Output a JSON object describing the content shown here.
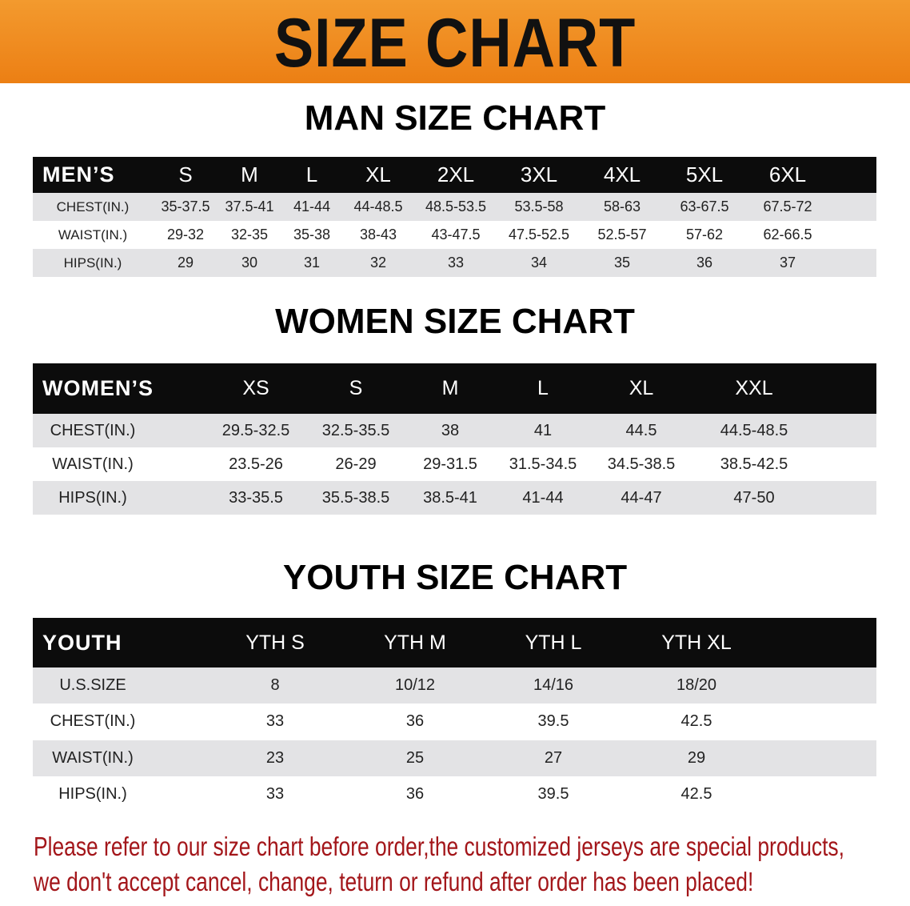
{
  "banner": {
    "title": "SIZE CHART",
    "color": "#ec7f14"
  },
  "men": {
    "title": "MAN SIZE CHART",
    "header_label": "MEN’S",
    "sizes": [
      "S",
      "M",
      "L",
      "XL",
      "2XL",
      "3XL",
      "4XL",
      "5XL",
      "6XL"
    ],
    "rows": [
      {
        "label": "CHEST(IN.)",
        "values": [
          "35-37.5",
          "37.5-41",
          "41-44",
          "44-48.5",
          "48.5-53.5",
          "53.5-58",
          "58-63",
          "63-67.5",
          "67.5-72"
        ]
      },
      {
        "label": "WAIST(IN.)",
        "values": [
          "29-32",
          "32-35",
          "35-38",
          "38-43",
          "43-47.5",
          "47.5-52.5",
          "52.5-57",
          "57-62",
          "62-66.5"
        ]
      },
      {
        "label": "HIPS(IN.)",
        "values": [
          "29",
          "30",
          "31",
          "32",
          "33",
          "34",
          "35",
          "36",
          "37"
        ]
      }
    ]
  },
  "women": {
    "title": "WOMEN SIZE CHART",
    "header_label": "WOMEN’S",
    "sizes": [
      "XS",
      "S",
      "M",
      "L",
      "XL",
      "XXL"
    ],
    "rows": [
      {
        "label": "CHEST(IN.)",
        "values": [
          "29.5-32.5",
          "32.5-35.5",
          "38",
          "41",
          "44.5",
          "44.5-48.5"
        ]
      },
      {
        "label": "WAIST(IN.)",
        "values": [
          "23.5-26",
          "26-29",
          "29-31.5",
          "31.5-34.5",
          "34.5-38.5",
          "38.5-42.5"
        ]
      },
      {
        "label": "HIPS(IN.)",
        "values": [
          "33-35.5",
          "35.5-38.5",
          "38.5-41",
          "41-44",
          "44-47",
          "47-50"
        ]
      }
    ]
  },
  "youth": {
    "title": "YOUTH SIZE CHART",
    "header_label": "YOUTH",
    "sizes": [
      "YTH S",
      "YTH M",
      "YTH L",
      "YTH XL"
    ],
    "rows": [
      {
        "label": "U.S.SIZE",
        "values": [
          "8",
          "10/12",
          "14/16",
          "18/20"
        ]
      },
      {
        "label": "CHEST(IN.)",
        "values": [
          "33",
          "36",
          "39.5",
          "42.5"
        ]
      },
      {
        "label": "WAIST(IN.)",
        "values": [
          "23",
          "25",
          "27",
          "29"
        ]
      },
      {
        "label": "HIPS(IN.)",
        "values": [
          "33",
          "36",
          "39.5",
          "42.5"
        ]
      }
    ]
  },
  "note": {
    "line1": "Please refer to our size chart before order,the customized jerseys are special products,",
    "line2": "we don't accept cancel, change, teturn or refund after order has been placed!",
    "color": "#a3161a"
  }
}
